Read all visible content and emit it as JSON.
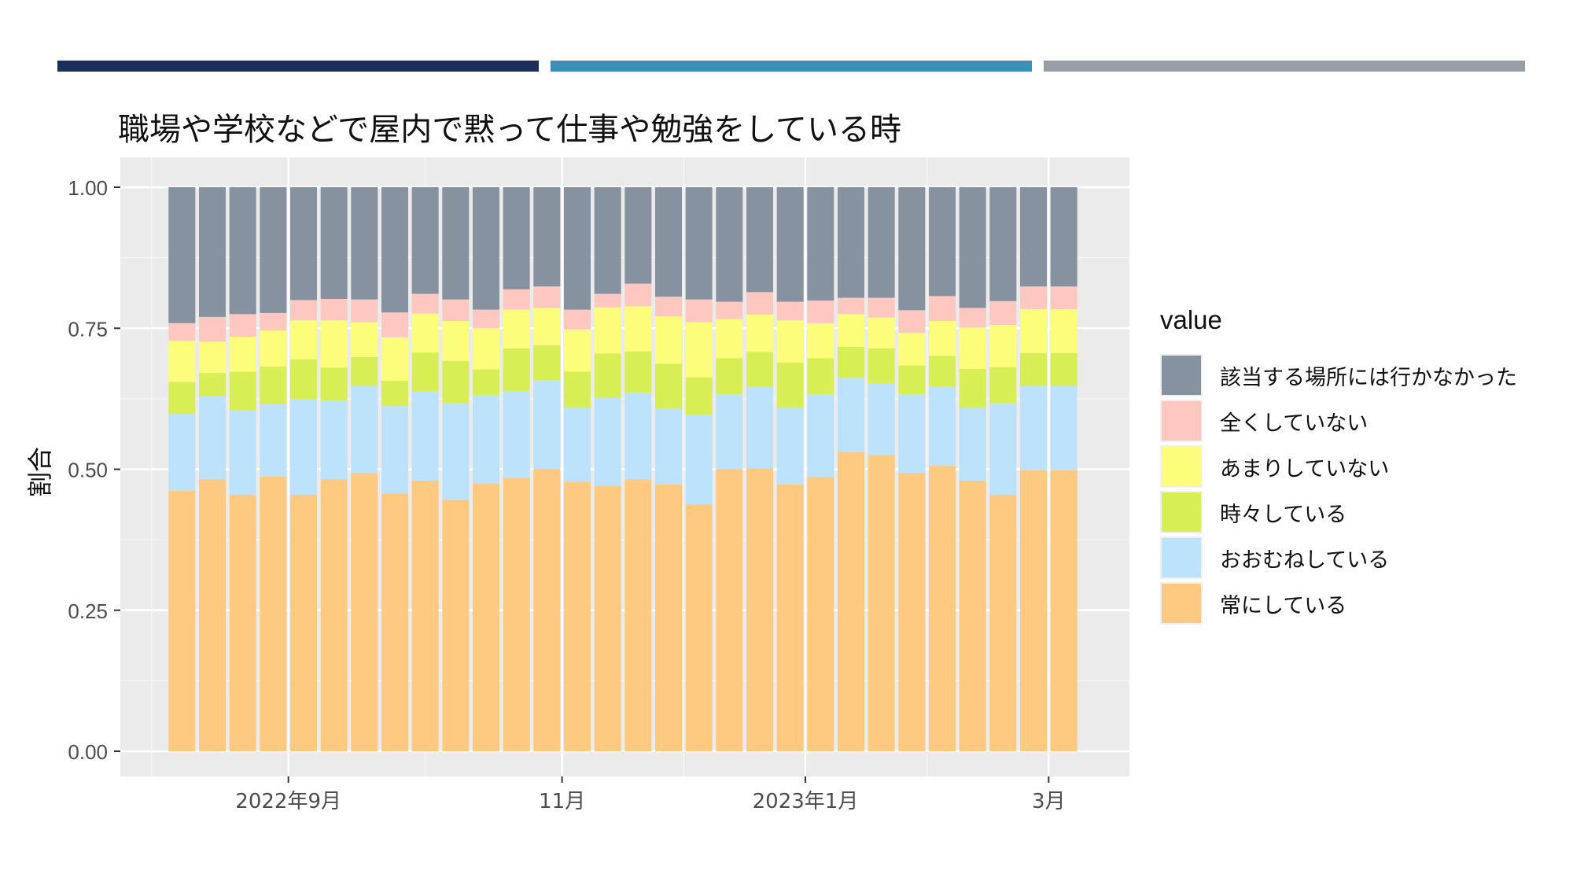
{
  "page": {
    "accent_colors": [
      "#1b2f5a",
      "#3d8fb9",
      "#979ea5"
    ]
  },
  "chart_data": {
    "type": "bar",
    "stacked": true,
    "title": "職場や学校などで屋内で黙って仕事や勉強をしている時",
    "xlabel": "",
    "ylabel": "割合",
    "ylim": [
      0,
      1
    ],
    "yticks": [
      "0.00",
      "0.25",
      "0.50",
      "0.75",
      "1.00"
    ],
    "xtick_labels": [
      "2022年9月",
      "11月",
      "2023年1月",
      "3月"
    ],
    "grid": true,
    "legend_position": "right",
    "legend_title": "value",
    "categories": [
      "1",
      "2",
      "3",
      "4",
      "5",
      "6",
      "7",
      "8",
      "9",
      "10",
      "11",
      "12",
      "13",
      "14",
      "15",
      "16",
      "17",
      "18",
      "19",
      "20",
      "21",
      "22",
      "23",
      "24",
      "25",
      "26",
      "27",
      "28",
      "29",
      "30"
    ],
    "series": [
      {
        "name": "常にしている",
        "color": "#fec980",
        "values": [
          0.462,
          0.482,
          0.455,
          0.487,
          0.455,
          0.482,
          0.493,
          0.457,
          0.48,
          0.446,
          0.475,
          0.484,
          0.5,
          0.478,
          0.471,
          0.482,
          0.473,
          0.438,
          0.5,
          0.502,
          0.473,
          0.486,
          0.531,
          0.525,
          0.493,
          0.506,
          0.48,
          0.455,
          0.498,
          0.498
        ]
      },
      {
        "name": "おおむねしている",
        "color": "#bde3fc",
        "values": [
          0.136,
          0.147,
          0.149,
          0.128,
          0.169,
          0.14,
          0.155,
          0.155,
          0.158,
          0.171,
          0.156,
          0.155,
          0.158,
          0.131,
          0.156,
          0.154,
          0.134,
          0.158,
          0.133,
          0.144,
          0.136,
          0.147,
          0.131,
          0.127,
          0.14,
          0.14,
          0.129,
          0.162,
          0.15,
          0.15
        ]
      },
      {
        "name": "時々している",
        "color": "#d7ef55",
        "values": [
          0.057,
          0.042,
          0.069,
          0.067,
          0.071,
          0.058,
          0.051,
          0.045,
          0.069,
          0.075,
          0.046,
          0.075,
          0.062,
          0.064,
          0.078,
          0.073,
          0.08,
          0.067,
          0.064,
          0.062,
          0.08,
          0.064,
          0.055,
          0.062,
          0.051,
          0.055,
          0.069,
          0.064,
          0.058,
          0.058
        ]
      },
      {
        "name": "あまりしていない",
        "color": "#fcfd7b",
        "values": [
          0.073,
          0.055,
          0.062,
          0.064,
          0.069,
          0.084,
          0.062,
          0.077,
          0.069,
          0.071,
          0.073,
          0.069,
          0.066,
          0.075,
          0.082,
          0.08,
          0.084,
          0.098,
          0.069,
          0.066,
          0.075,
          0.062,
          0.058,
          0.055,
          0.058,
          0.062,
          0.073,
          0.075,
          0.078,
          0.078
        ]
      },
      {
        "name": "全くしていない",
        "color": "#fec7c0",
        "values": [
          0.031,
          0.044,
          0.04,
          0.031,
          0.036,
          0.038,
          0.04,
          0.044,
          0.035,
          0.038,
          0.033,
          0.036,
          0.038,
          0.035,
          0.024,
          0.04,
          0.035,
          0.04,
          0.031,
          0.04,
          0.033,
          0.04,
          0.029,
          0.035,
          0.04,
          0.044,
          0.035,
          0.042,
          0.04,
          0.04
        ]
      },
      {
        "name": "該当する場所には行かなかった",
        "color": "#8692a0",
        "values": [
          0.241,
          0.23,
          0.225,
          0.223,
          0.2,
          0.198,
          0.199,
          0.222,
          0.189,
          0.199,
          0.217,
          0.181,
          0.176,
          0.217,
          0.189,
          0.171,
          0.194,
          0.199,
          0.203,
          0.186,
          0.203,
          0.201,
          0.196,
          0.196,
          0.218,
          0.193,
          0.214,
          0.202,
          0.176,
          0.176
        ]
      }
    ]
  }
}
